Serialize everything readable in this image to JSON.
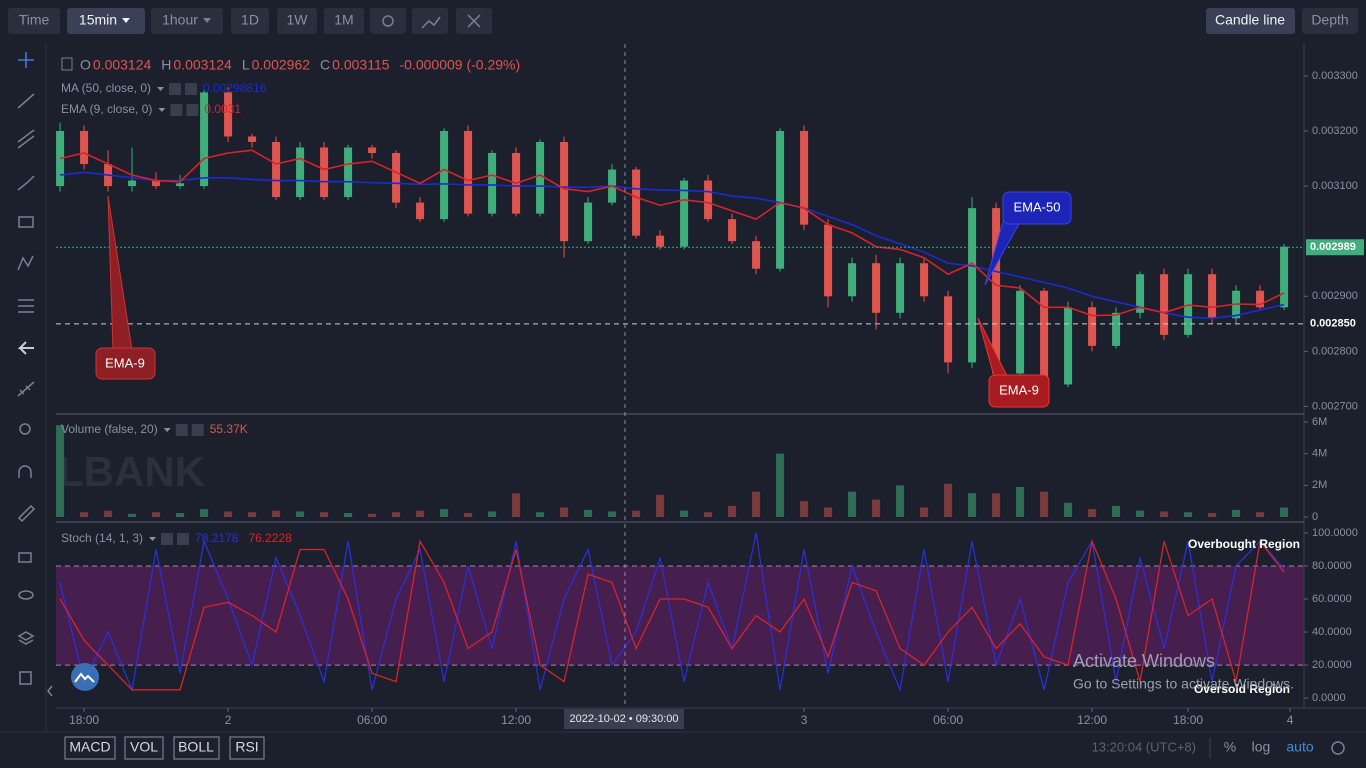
{
  "toolbar": {
    "intervals": [
      "Time",
      "15min",
      "1hour",
      "1D",
      "1W",
      "1M"
    ],
    "views": [
      "Candle line",
      "Depth"
    ]
  },
  "ohlc_header": [
    {
      "key": "O",
      "value": 0.003124
    },
    {
      "key": "H",
      "value": 0.003124
    },
    {
      "key": "L",
      "value": 0.002962
    },
    {
      "key": "C",
      "value": 0.003115
    }
  ],
  "change": "-0.000009 (-0.29%)",
  "watermark": "LBANK",
  "crosshair_label": "2022-10-02 • 09:30:00",
  "annotations": [
    "EMA-9",
    "EMA-50",
    "EMA-9",
    "Overbought Region",
    "Oversold Region"
  ],
  "windows_notice": {
    "title": "Activate Windows",
    "text": "Go to Settings to activate Windows."
  },
  "bottom_bar": {
    "indicators": [
      "MACD",
      "VOL",
      "BOLL",
      "RSI"
    ],
    "clock": "13:20:04 (UTC+8)",
    "scale_options": [
      "%",
      "log",
      "auto"
    ]
  },
  "chart_data": [
    {
      "type": "candlestick",
      "up_color": "#3fae7a",
      "down_color": "#e0544f",
      "xlim": [
        -1.17,
        50.83
      ],
      "xticks": [
        {
          "value": 0,
          "label": "18:00"
        },
        {
          "value": 6,
          "label": "2"
        },
        {
          "value": 12,
          "label": "06:00"
        },
        {
          "value": 18,
          "label": "12:00"
        },
        {
          "value": 30,
          "label": "3"
        },
        {
          "value": 36,
          "label": "06:00"
        },
        {
          "value": 42,
          "label": "12:00"
        },
        {
          "value": 46,
          "label": "18:00"
        },
        {
          "value": 50.25,
          "label": "4"
        }
      ],
      "ylim": [
        0.00269,
        0.003356
      ],
      "yticks": [
        {
          "value": 0.0027,
          "label": "0.002700"
        },
        {
          "value": 0.0028,
          "label": "0.002800"
        },
        {
          "value": 0.0029,
          "label": "0.002900"
        },
        {
          "value": 0.0031,
          "label": "0.003100"
        },
        {
          "value": 0.0032,
          "label": "0.003200"
        },
        {
          "value": 0.0033,
          "label": "0.003300"
        }
      ],
      "price_lines": [
        {
          "value": 0.002989,
          "label": "0.002989",
          "color": "#3fae7a"
        },
        {
          "value": 0.00285,
          "label": "0.002850",
          "color": "#c8ccd6"
        }
      ],
      "x": [
        -1,
        0,
        1,
        2,
        3,
        4,
        5,
        6,
        7,
        8,
        9,
        10,
        11,
        12,
        13,
        14,
        15,
        16,
        17,
        18,
        19,
        20,
        21,
        22,
        23,
        24,
        25,
        26,
        27,
        28,
        29,
        30,
        31,
        32,
        33,
        34,
        35,
        36,
        37,
        38,
        39,
        40,
        41,
        42,
        43,
        44,
        45,
        46,
        47,
        48,
        49,
        50
      ],
      "open": [
        0.0031,
        0.0032,
        0.00314,
        0.0031,
        0.00311,
        0.0031,
        0.0031,
        0.00327,
        0.00319,
        0.00318,
        0.00308,
        0.00317,
        0.00308,
        0.00317,
        0.00316,
        0.00307,
        0.00304,
        0.0032,
        0.00305,
        0.00316,
        0.00305,
        0.00318,
        0.003,
        0.00307,
        0.00313,
        0.00301,
        0.00299,
        0.00311,
        0.00304,
        0.003,
        0.00295,
        0.0032,
        0.00303,
        0.0029,
        0.00296,
        0.00287,
        0.00296,
        0.0029,
        0.00278,
        0.00306,
        0.00276,
        0.00291,
        0.00274,
        0.00288,
        0.00281,
        0.00287,
        0.00294,
        0.00283,
        0.00294,
        0.00286,
        0.00291,
        0.00288
      ],
      "high": [
        0.003215,
        0.00321,
        0.003165,
        0.00317,
        0.003125,
        0.00312,
        0.003275,
        0.00328,
        0.003195,
        0.00319,
        0.00318,
        0.00318,
        0.003175,
        0.003175,
        0.003165,
        0.00308,
        0.003205,
        0.00321,
        0.003165,
        0.00317,
        0.003185,
        0.00319,
        0.00308,
        0.00314,
        0.003135,
        0.00302,
        0.003115,
        0.00312,
        0.00305,
        0.00301,
        0.003205,
        0.00321,
        0.00304,
        0.00297,
        0.002975,
        0.00297,
        0.00297,
        0.00291,
        0.00308,
        0.00307,
        0.00292,
        0.002915,
        0.00289,
        0.00289,
        0.00288,
        0.002945,
        0.00295,
        0.00295,
        0.00295,
        0.00292,
        0.00292,
        0.002995
      ],
      "low": [
        0.00309,
        0.00313,
        0.00309,
        0.00309,
        0.003095,
        0.003095,
        0.003095,
        0.00318,
        0.00317,
        0.003075,
        0.003075,
        0.003075,
        0.003075,
        0.00315,
        0.00306,
        0.003035,
        0.003035,
        0.003045,
        0.003045,
        0.003045,
        0.003045,
        0.00297,
        0.002995,
        0.003065,
        0.003005,
        0.002985,
        0.002985,
        0.003035,
        0.002995,
        0.00294,
        0.002945,
        0.00302,
        0.00288,
        0.00289,
        0.00284,
        0.00286,
        0.00289,
        0.00276,
        0.00277,
        0.00273,
        0.00275,
        0.00273,
        0.002735,
        0.0028,
        0.002805,
        0.00286,
        0.00282,
        0.002825,
        0.00285,
        0.00285,
        0.002875,
        0.002875
      ],
      "close": [
        0.0032,
        0.00314,
        0.0031,
        0.00311,
        0.0031,
        0.003105,
        0.00327,
        0.00319,
        0.00318,
        0.00308,
        0.00317,
        0.00308,
        0.00317,
        0.00316,
        0.00307,
        0.00304,
        0.0032,
        0.00305,
        0.00316,
        0.00305,
        0.00318,
        0.003,
        0.00307,
        0.00313,
        0.00301,
        0.00299,
        0.00311,
        0.00304,
        0.003,
        0.00295,
        0.0032,
        0.00303,
        0.0029,
        0.00296,
        0.00287,
        0.00296,
        0.0029,
        0.00278,
        0.00306,
        0.00276,
        0.00291,
        0.00274,
        0.00288,
        0.00281,
        0.00287,
        0.00294,
        0.00283,
        0.00294,
        0.00286,
        0.00291,
        0.00288,
        0.00299
      ],
      "series": [
        {
          "name": "MA (50, close, 0)",
          "color": "#1b2bd0",
          "value_label": "0.00298816",
          "values": [
            0.00312,
            0.003125,
            0.00312,
            0.003115,
            0.00311,
            0.00311,
            0.003115,
            0.003115,
            0.003112,
            0.00311,
            0.00311,
            0.003108,
            0.003108,
            0.003106,
            0.003105,
            0.003103,
            0.003104,
            0.003102,
            0.003102,
            0.0031,
            0.0031,
            0.003098,
            0.003098,
            0.0031,
            0.003095,
            0.003093,
            0.003092,
            0.00309,
            0.003082,
            0.003078,
            0.00307,
            0.00306,
            0.003045,
            0.00303,
            0.00301,
            0.002995,
            0.00298,
            0.00296,
            0.002955,
            0.002945,
            0.002935,
            0.002925,
            0.002915,
            0.0029,
            0.00289,
            0.00288,
            0.00287,
            0.002862,
            0.00286,
            0.002865,
            0.002875,
            0.002885
          ]
        },
        {
          "name": "EMA (9, close, 0)",
          "color": "#d8232a",
          "value_label": "0.0031",
          "values": [
            0.00315,
            0.00316,
            0.00314,
            0.00312,
            0.00311,
            0.003108,
            0.00315,
            0.00316,
            0.003165,
            0.00314,
            0.00315,
            0.00313,
            0.00314,
            0.003145,
            0.003125,
            0.003105,
            0.00313,
            0.00311,
            0.00312,
            0.003105,
            0.00312,
            0.003095,
            0.00309,
            0.0031,
            0.00308,
            0.003065,
            0.003075,
            0.00307,
            0.003055,
            0.00304,
            0.00307,
            0.00306,
            0.00303,
            0.003015,
            0.00299,
            0.002985,
            0.00297,
            0.00294,
            0.00296,
            0.00292,
            0.002915,
            0.00288,
            0.00288,
            0.002865,
            0.002866,
            0.00288,
            0.00287,
            0.002884,
            0.00288,
            0.002886,
            0.002885,
            0.002906
          ]
        }
      ]
    },
    {
      "type": "bar",
      "title": "Volume (false, 20)",
      "value_label": "55.37K",
      "up_color": "#2e6e56",
      "down_color": "#7a3b3d",
      "ylim": [
        0,
        6000000
      ],
      "yticks": [
        0,
        {
          "value": 2000000,
          "label": "2M"
        },
        {
          "value": 4000000,
          "label": "4M"
        },
        {
          "value": 6000000,
          "label": "6M"
        }
      ],
      "values": [
        5800000,
        300000,
        400000,
        200000,
        300000,
        250000,
        500000,
        350000,
        300000,
        400000,
        350000,
        300000,
        250000,
        200000,
        300000,
        400000,
        500000,
        250000,
        350000,
        1500000,
        300000,
        600000,
        450000,
        350000,
        400000,
        1400000,
        400000,
        300000,
        700000,
        1600000,
        4000000,
        1000000,
        600000,
        1600000,
        1100000,
        2000000,
        600000,
        2100000,
        1500000,
        1500000,
        1900000,
        1600000,
        900000,
        500000,
        700000,
        400000,
        350000,
        300000,
        250000,
        450000,
        300000,
        600000
      ]
    },
    {
      "type": "line",
      "title": "Stoch (14, 1, 3)",
      "ylim": [
        -6,
        103
      ],
      "yticks": [
        {
          "value": 0,
          "label": "0.0000"
        },
        {
          "value": 20,
          "label": "20.0000"
        },
        {
          "value": 40,
          "label": "40.0000"
        },
        {
          "value": 60,
          "label": "60.0000"
        },
        {
          "value": 80,
          "label": "80.0000"
        },
        {
          "value": 100,
          "label": "100.0000"
        }
      ],
      "bands": [
        20,
        80
      ],
      "band_color": "#6a1f6e",
      "series": [
        {
          "color": "#2b2fd6",
          "value_label": "78.2178",
          "values": [
            70,
            10,
            40,
            5,
            90,
            15,
            95,
            60,
            20,
            85,
            50,
            10,
            95,
            5,
            60,
            90,
            10,
            80,
            30,
            95,
            5,
            60,
            90,
            20,
            40,
            85,
            10,
            70,
            30,
            100,
            5,
            90,
            15,
            80,
            40,
            5,
            90,
            10,
            95,
            20,
            60,
            5,
            70,
            95,
            10,
            85,
            30,
            95,
            10,
            80,
            95,
            78.2178
          ]
        },
        {
          "color": "#d8232a",
          "value_label": "76.2228",
          "values": [
            60,
            35,
            20,
            5,
            5,
            5,
            55,
            58,
            50,
            40,
            90,
            90,
            60,
            15,
            10,
            95,
            70,
            30,
            40,
            90,
            20,
            10,
            75,
            70,
            30,
            60,
            60,
            55,
            30,
            50,
            40,
            60,
            25,
            70,
            65,
            30,
            20,
            40,
            55,
            30,
            45,
            25,
            20,
            95,
            60,
            10,
            95,
            50,
            60,
            10,
            95,
            76.2228
          ]
        }
      ]
    }
  ]
}
